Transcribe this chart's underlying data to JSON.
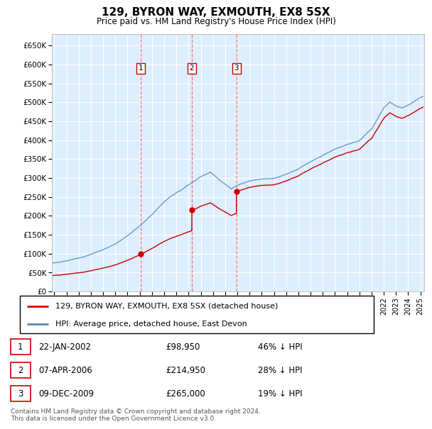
{
  "title": "129, BYRON WAY, EXMOUTH, EX8 5SX",
  "subtitle": "Price paid vs. HM Land Registry's House Price Index (HPI)",
  "footer": "Contains HM Land Registry data © Crown copyright and database right 2024.\nThis data is licensed under the Open Government Licence v3.0.",
  "legend_line1": "129, BYRON WAY, EXMOUTH, EX8 5SX (detached house)",
  "legend_line2": "HPI: Average price, detached house, East Devon",
  "trans_years": [
    2002.07,
    2006.27,
    2009.92
  ],
  "trans_prices": [
    98950,
    214950,
    265000
  ],
  "trans_nums": [
    "1",
    "2",
    "3"
  ],
  "trans_dates": [
    "22-JAN-2002",
    "07-APR-2006",
    "09-DEC-2009"
  ],
  "trans_price_strs": [
    "£98,950",
    "£214,950",
    "£265,000"
  ],
  "trans_hpi_strs": [
    "46% ↓ HPI",
    "28% ↓ HPI",
    "19% ↓ HPI"
  ],
  "red_line_color": "#cc0000",
  "blue_line_color": "#5588bb",
  "plot_bg_color": "#ddeeff",
  "grid_color": "#ffffff",
  "ylim": [
    0,
    680000
  ],
  "yticks": [
    0,
    50000,
    100000,
    150000,
    200000,
    250000,
    300000,
    350000,
    400000,
    450000,
    500000,
    550000,
    600000,
    650000
  ],
  "xmin": 1994.8,
  "xmax": 2025.3,
  "n_points": 3600
}
